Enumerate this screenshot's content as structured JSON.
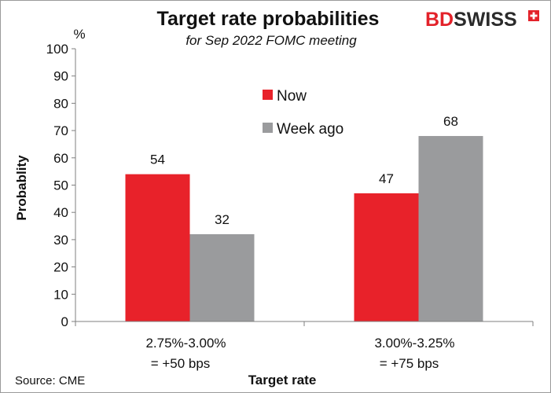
{
  "brand": {
    "part1": "BD",
    "part2": "SWISS"
  },
  "source": "Source: CME",
  "chart_data": {
    "type": "bar",
    "title": "Target rate probabilities",
    "subtitle": "for Sep 2022 FOMC meeting",
    "unit": "%",
    "ylabel": "Probablity",
    "xlabel": "Target rate",
    "ylim": [
      0,
      100
    ],
    "yticks": [
      0,
      10,
      20,
      30,
      40,
      50,
      60,
      70,
      80,
      90,
      100
    ],
    "categories": [
      {
        "line1": "2.75%-3.00%",
        "line2": "= +50 bps"
      },
      {
        "line1": "3.00%-3.25%",
        "line2": "= +75 bps"
      }
    ],
    "series": [
      {
        "name": "Now",
        "color": "#e8222a",
        "values": [
          54,
          47
        ],
        "labels": [
          "54",
          "47"
        ]
      },
      {
        "name": "Week ago",
        "color": "#9a9b9d",
        "values": [
          32,
          68
        ],
        "labels": [
          "32",
          "68"
        ]
      }
    ],
    "grid": false,
    "legend_position": "upper-center"
  }
}
